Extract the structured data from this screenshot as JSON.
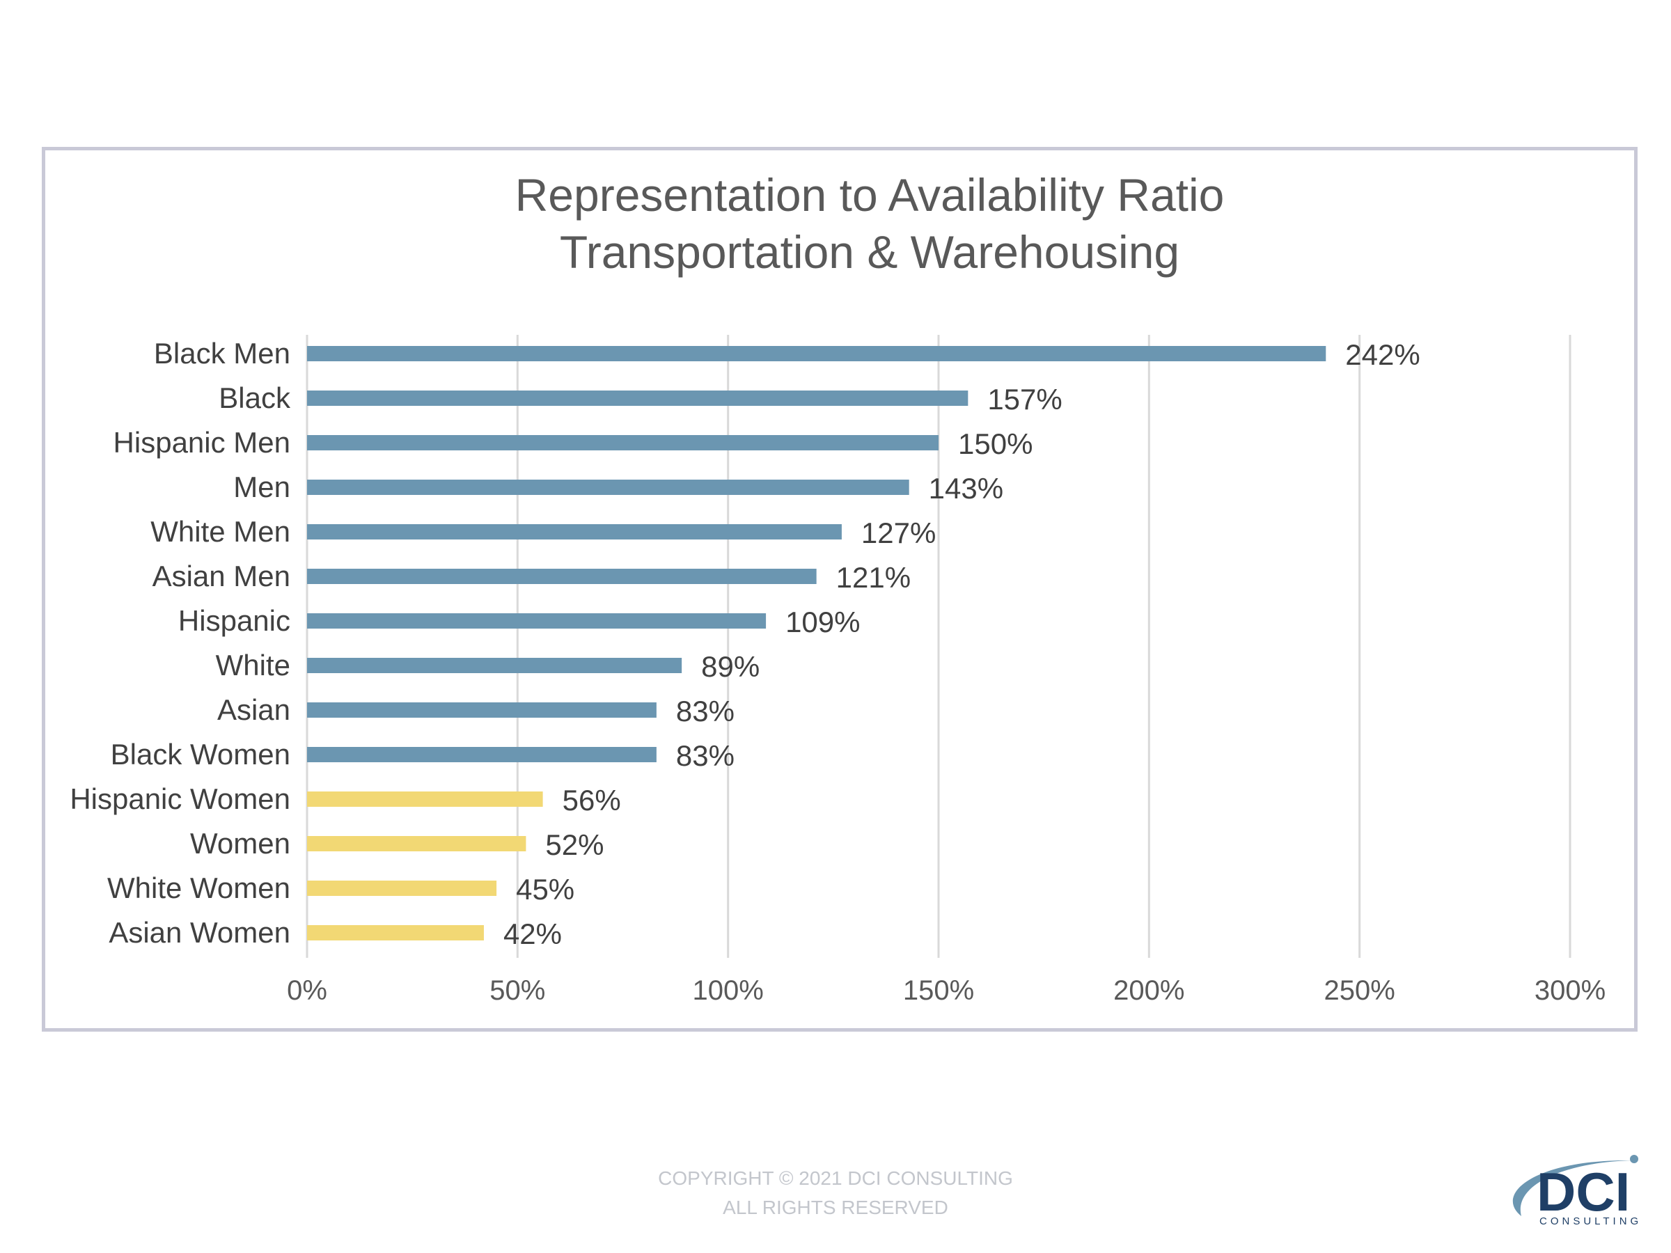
{
  "chart_data": {
    "type": "bar",
    "orientation": "horizontal",
    "title": [
      "Representation to Availability Ratio",
      "Transportation & Warehousing"
    ],
    "categories": [
      "Black Men",
      "Black",
      "Hispanic Men",
      "Men",
      "White Men",
      "Asian Men",
      "Hispanic",
      "White",
      "Asian",
      "Black Women",
      "Hispanic Women",
      "Women",
      "White Women",
      "Asian Women"
    ],
    "values": [
      242,
      157,
      150,
      143,
      127,
      121,
      109,
      89,
      83,
      83,
      56,
      52,
      45,
      42
    ],
    "value_labels": [
      "242%",
      "157%",
      "150%",
      "143%",
      "127%",
      "121%",
      "109%",
      "89%",
      "83%",
      "83%",
      "56%",
      "52%",
      "45%",
      "42%"
    ],
    "bar_colors": [
      "#6b96b1",
      "#6b96b1",
      "#6b96b1",
      "#6b96b1",
      "#6b96b1",
      "#6b96b1",
      "#6b96b1",
      "#6b96b1",
      "#6b96b1",
      "#6b96b1",
      "#f2d874",
      "#f2d874",
      "#f2d874",
      "#f2d874"
    ],
    "xlim": [
      0,
      300
    ],
    "xticks": [
      0,
      50,
      100,
      150,
      200,
      250,
      300
    ],
    "xtick_labels": [
      "0%",
      "50%",
      "100%",
      "150%",
      "200%",
      "250%",
      "300%"
    ],
    "xlabel": "",
    "ylabel": "",
    "grid": "vertical",
    "legend": "none",
    "colors": {
      "grid": "#d9d9d9",
      "frame": "#c9c9d7"
    }
  },
  "footer": {
    "copyright_line1": "COPYRIGHT © 2021 DCI CONSULTING",
    "copyright_line2": "ALL RIGHTS RESERVED"
  },
  "logo": {
    "text": "DCI",
    "subtext": "CONSULTING",
    "colors": {
      "primary": "#1f3f66",
      "swoosh": "#6b96b1"
    }
  }
}
